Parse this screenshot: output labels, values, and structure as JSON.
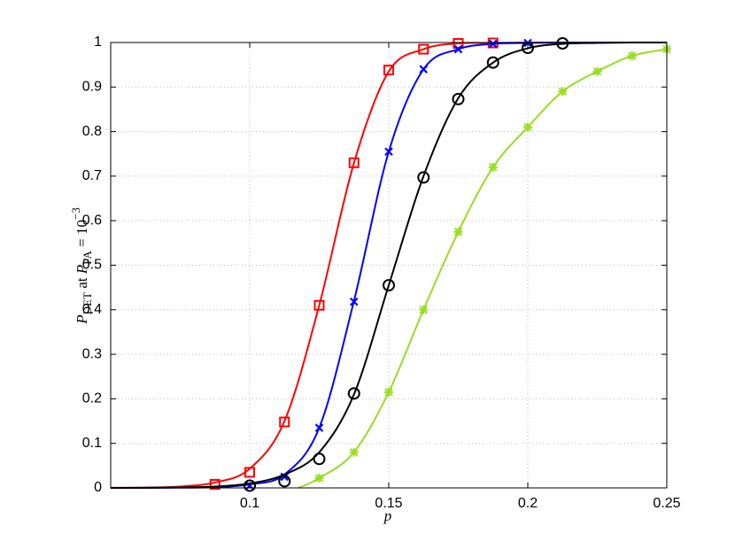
{
  "chart_data": {
    "type": "line",
    "x_label": "p",
    "y_label": {
      "p1": "P",
      "s1": "DET",
      "mid": " at ",
      "p2": "P",
      "s2": "FA",
      "eq": " = 10",
      "sup": "−3"
    },
    "xlim": [
      0.05,
      0.25
    ],
    "ylim": [
      0,
      1
    ],
    "xticks": [
      0.1,
      0.15,
      0.2,
      0.25
    ],
    "yticks": [
      0,
      0.1,
      0.2,
      0.3,
      0.4,
      0.5,
      0.6,
      0.7,
      0.8,
      0.9,
      1
    ],
    "grid": true,
    "series": [
      {
        "color": "#ff0000",
        "marker": "square",
        "line_x": [
          0.05,
          0.0625,
          0.075,
          0.0875,
          0.1,
          0.1125,
          0.125,
          0.1375,
          0.15,
          0.1625,
          0.175,
          0.1875,
          0.2,
          0.2125,
          0.225,
          0.2375,
          0.25
        ],
        "line_values": [
          0.0002,
          0.0008,
          0.003,
          0.012,
          0.043,
          0.15,
          0.41,
          0.73,
          0.935,
          0.985,
          0.998,
          0.999,
          1,
          1,
          1,
          1,
          1
        ],
        "x": [
          0.0875,
          0.1,
          0.1125,
          0.125,
          0.1375,
          0.15,
          0.1625,
          0.175,
          0.1875
        ],
        "values": [
          0.008,
          0.035,
          0.148,
          0.41,
          0.73,
          0.938,
          0.985,
          0.998,
          0.999
        ]
      },
      {
        "color": "#0000ff",
        "marker": "x",
        "line_x": [
          0.05,
          0.0625,
          0.075,
          0.0875,
          0.1,
          0.1125,
          0.125,
          0.1375,
          0.15,
          0.1625,
          0.175,
          0.1875,
          0.2,
          0.2125,
          0.225,
          0.2375,
          0.25
        ],
        "line_values": [
          0,
          0.0001,
          0.0004,
          0.0017,
          0.008,
          0.03,
          0.135,
          0.42,
          0.755,
          0.94,
          0.985,
          0.997,
          0.999,
          1,
          1,
          1,
          1
        ],
        "x": [
          0.1,
          0.1125,
          0.125,
          0.1375,
          0.15,
          0.1625,
          0.175,
          0.1875,
          0.2
        ],
        "values": [
          0.005,
          0.025,
          0.135,
          0.418,
          0.755,
          0.94,
          0.985,
          0.997,
          0.999
        ]
      },
      {
        "color": "#000000",
        "marker": "circle",
        "line_x": [
          0.05,
          0.0625,
          0.075,
          0.0875,
          0.1,
          0.1125,
          0.125,
          0.1375,
          0.15,
          0.1625,
          0.175,
          0.1875,
          0.2,
          0.2125,
          0.225,
          0.2375,
          0.25
        ],
        "line_values": [
          0,
          0.0003,
          0.001,
          0.003,
          0.01,
          0.03,
          0.08,
          0.21,
          0.455,
          0.7,
          0.875,
          0.955,
          0.987,
          0.997,
          0.999,
          1,
          1
        ],
        "x": [
          0.1,
          0.1125,
          0.125,
          0.1375,
          0.15,
          0.1625,
          0.175,
          0.1875,
          0.2,
          0.2125
        ],
        "values": [
          0.005,
          0.015,
          0.065,
          0.212,
          0.455,
          0.697,
          0.873,
          0.955,
          0.988,
          0.998
        ]
      },
      {
        "color": "#99dd22",
        "marker": "asterisk",
        "line_x": [
          0.1175,
          0.125,
          0.1375,
          0.15,
          0.1625,
          0.175,
          0.1875,
          0.2,
          0.2125,
          0.225,
          0.2375,
          0.25
        ],
        "line_values": [
          0,
          0.022,
          0.08,
          0.215,
          0.4,
          0.575,
          0.72,
          0.81,
          0.89,
          0.935,
          0.97,
          0.985
        ],
        "x": [
          0.125,
          0.1375,
          0.15,
          0.1625,
          0.175,
          0.1875,
          0.2,
          0.2125,
          0.225,
          0.2375,
          0.25
        ],
        "values": [
          0.022,
          0.08,
          0.215,
          0.4,
          0.575,
          0.72,
          0.81,
          0.89,
          0.935,
          0.97,
          0.985
        ]
      }
    ]
  }
}
